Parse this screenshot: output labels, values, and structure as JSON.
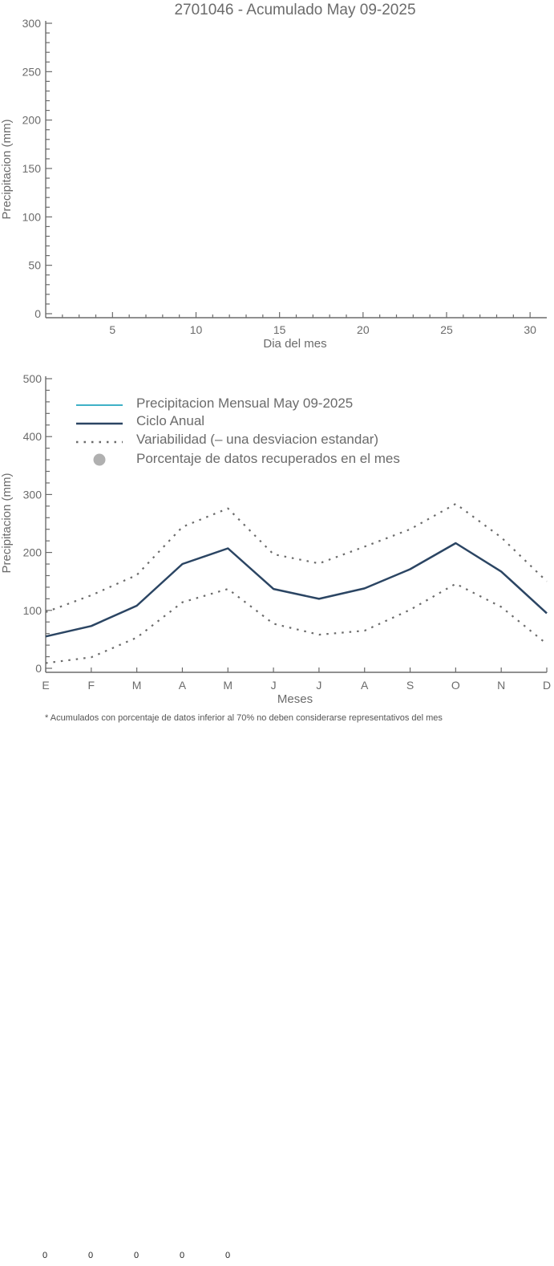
{
  "colors": {
    "axis": "#6b6b6b",
    "monthly_precip": "#3fb1c6",
    "annual_cycle": "#2b4563",
    "variability": "#6b6b6b",
    "pct_marker": "#b0b0b0"
  },
  "chart_data": [
    {
      "type": "line",
      "title": "2701046 - Acumulado May 09-2025",
      "xlabel": "Dia del mes",
      "ylabel": "Precipitacion (mm)",
      "xlim": [
        1,
        31
      ],
      "ylim": [
        0,
        300
      ],
      "xticks": [
        5,
        10,
        15,
        20,
        25,
        30
      ],
      "xtick_labels": [
        "5",
        "10",
        "15",
        "20",
        "25",
        "30"
      ],
      "yticks": [
        0,
        50,
        100,
        150,
        200,
        250,
        300
      ],
      "ytick_labels": [
        "0",
        "50",
        "100",
        "150",
        "200",
        "250",
        "300"
      ],
      "grid": false,
      "series": []
    },
    {
      "type": "line",
      "title": "",
      "xlabel": "Meses",
      "ylabel": "Precipitacion (mm)",
      "categories": [
        "E",
        "F",
        "M",
        "A",
        "M",
        "J",
        "J",
        "A",
        "S",
        "O",
        "N",
        "D"
      ],
      "ylim": [
        0,
        500
      ],
      "yticks": [
        0,
        100,
        200,
        300,
        400,
        500
      ],
      "ytick_labels": [
        "0",
        "100",
        "200",
        "300",
        "400",
        "500"
      ],
      "grid": false,
      "legend_position": "top-left",
      "legend": [
        {
          "label": "Precipitacion Mensual May 09-2025",
          "style": "line-cyan"
        },
        {
          "label": "Ciclo Anual",
          "style": "line-navy"
        },
        {
          "label": "Variabilidad (– una desviacion estandar)",
          "style": "dotted"
        },
        {
          "label": "Porcentaje de datos recuperados en el mes",
          "style": "dot"
        }
      ],
      "series": [
        {
          "name": "Ciclo Anual",
          "values": [
            55,
            73,
            108,
            180,
            207,
            137,
            120,
            138,
            171,
            216,
            167,
            95
          ]
        },
        {
          "name": "Variabilidad (– una desviacion estandar)",
          "part": "upper",
          "values": [
            97,
            126,
            161,
            244,
            276,
            197,
            181,
            210,
            240,
            284,
            226,
            150
          ]
        },
        {
          "name": "Variabilidad (– una desviacion estandar)",
          "part": "lower",
          "values": [
            9,
            19,
            53,
            114,
            137,
            77,
            58,
            65,
            101,
            146,
            106,
            42
          ]
        }
      ],
      "footnote": "* Acumulados con porcentaje de datos inferior al 70% no deben considerarse representativos del mes"
    }
  ],
  "bottom_values": [
    "0",
    "0",
    "0",
    "0",
    "0"
  ]
}
